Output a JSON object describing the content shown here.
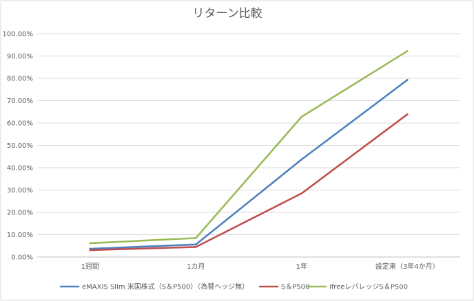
{
  "chart_data": {
    "type": "line",
    "title": "リターン比較",
    "categories": [
      "1週間",
      "1カ月",
      "1年",
      "設定来（3年4か月）"
    ],
    "y_tick_labels": [
      "0.00%",
      "10.00%",
      "20.00%",
      "30.00%",
      "40.00%",
      "50.00%",
      "60.00%",
      "70.00%",
      "80.00%",
      "90.00%",
      "100.00%"
    ],
    "ylim": [
      0,
      100
    ],
    "xlabel": "",
    "ylabel": "",
    "grid": true,
    "legend_position": "bottom",
    "series": [
      {
        "name": "eMAXIS Slim 米国株式（S＆P500）（為替ヘッジ無）",
        "color": "#4f81bd",
        "values": [
          3.7,
          5.6,
          43.7,
          79.3
        ]
      },
      {
        "name": "S＆P500",
        "color": "#c0504d",
        "values": [
          3.1,
          4.5,
          28.5,
          63.9
        ]
      },
      {
        "name": "ifreeレバレッジS＆P500",
        "color": "#9bbb59",
        "values": [
          6.2,
          8.5,
          62.8,
          92.2
        ]
      }
    ]
  }
}
